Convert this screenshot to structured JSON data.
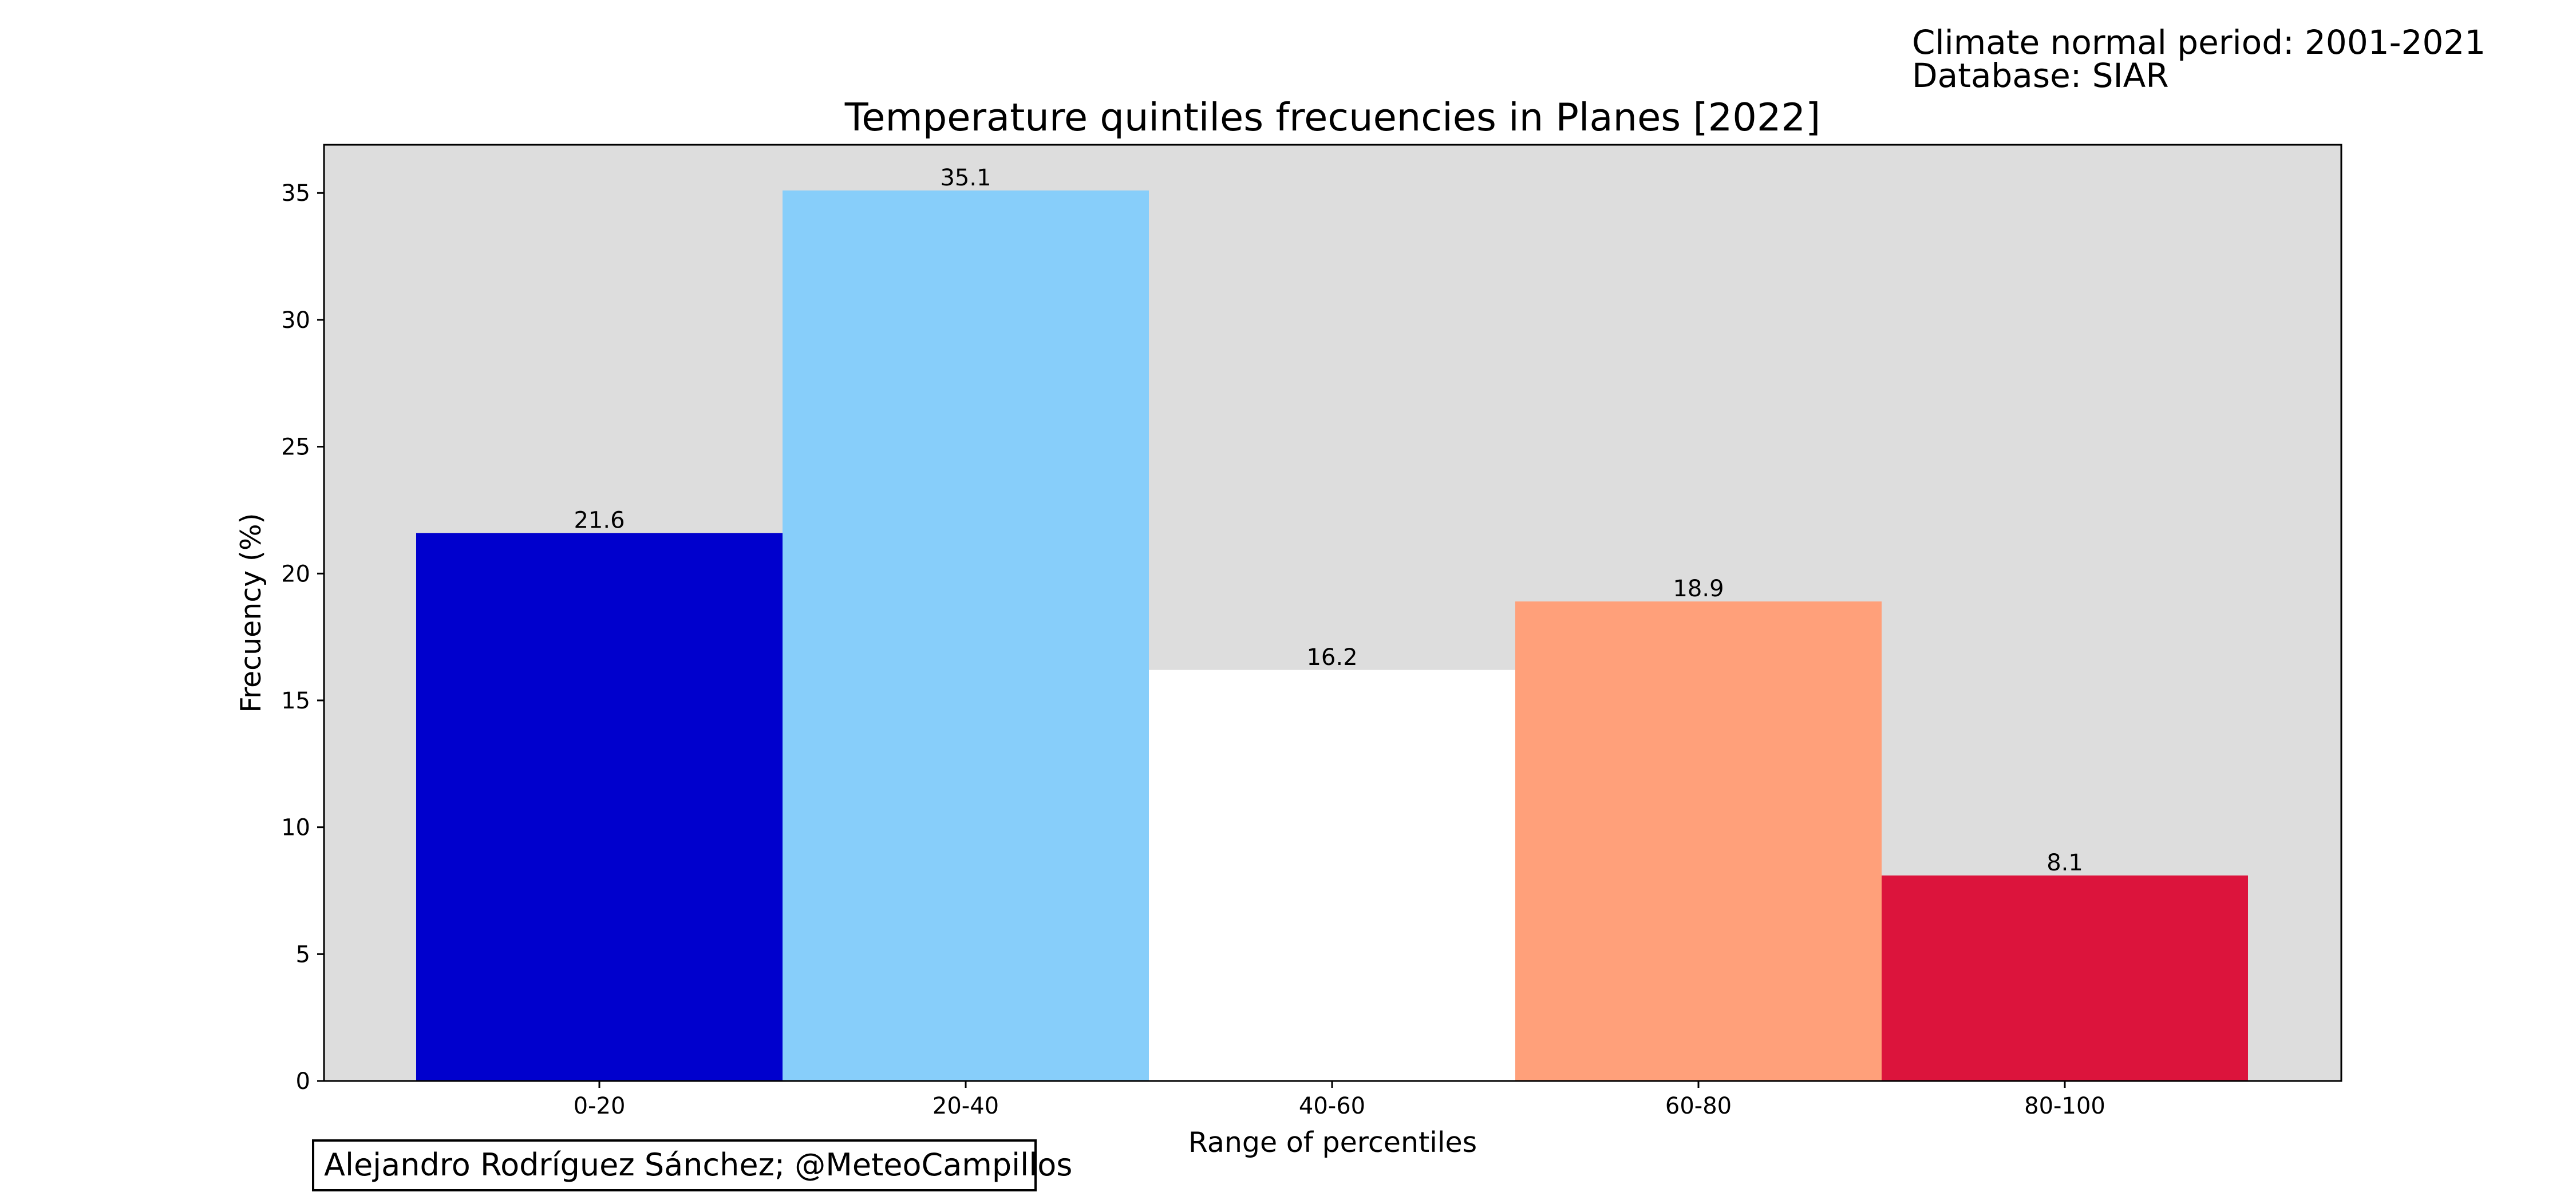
{
  "header": {
    "climate_normal": "Climate normal period: 2001-2021",
    "database": "Database: SIAR"
  },
  "credit": "Alejandro Rodríguez Sánchez; @MeteoCampillos",
  "chart_data": {
    "type": "bar",
    "title": "Temperature quintiles frecuencies in Planes [2022]",
    "xlabel": "Range of percentiles",
    "ylabel": "Frecuency (%)",
    "categories": [
      "0-20",
      "20-40",
      "40-60",
      "60-80",
      "80-100"
    ],
    "values": [
      21.6,
      35.1,
      16.2,
      18.9,
      8.1
    ],
    "value_labels": [
      "21.6",
      "35.1",
      "16.2",
      "18.9",
      "8.1"
    ],
    "bar_colors": [
      "#0000CD",
      "#87CEFA",
      "#FFFFFF",
      "#FFA07A",
      "#DC143C"
    ],
    "background_color": "#DDDDDD",
    "ylim": [
      0,
      36.9
    ],
    "yticks": [
      0,
      5,
      10,
      15,
      20,
      25,
      30,
      35
    ],
    "grid": false,
    "legend": "none"
  }
}
